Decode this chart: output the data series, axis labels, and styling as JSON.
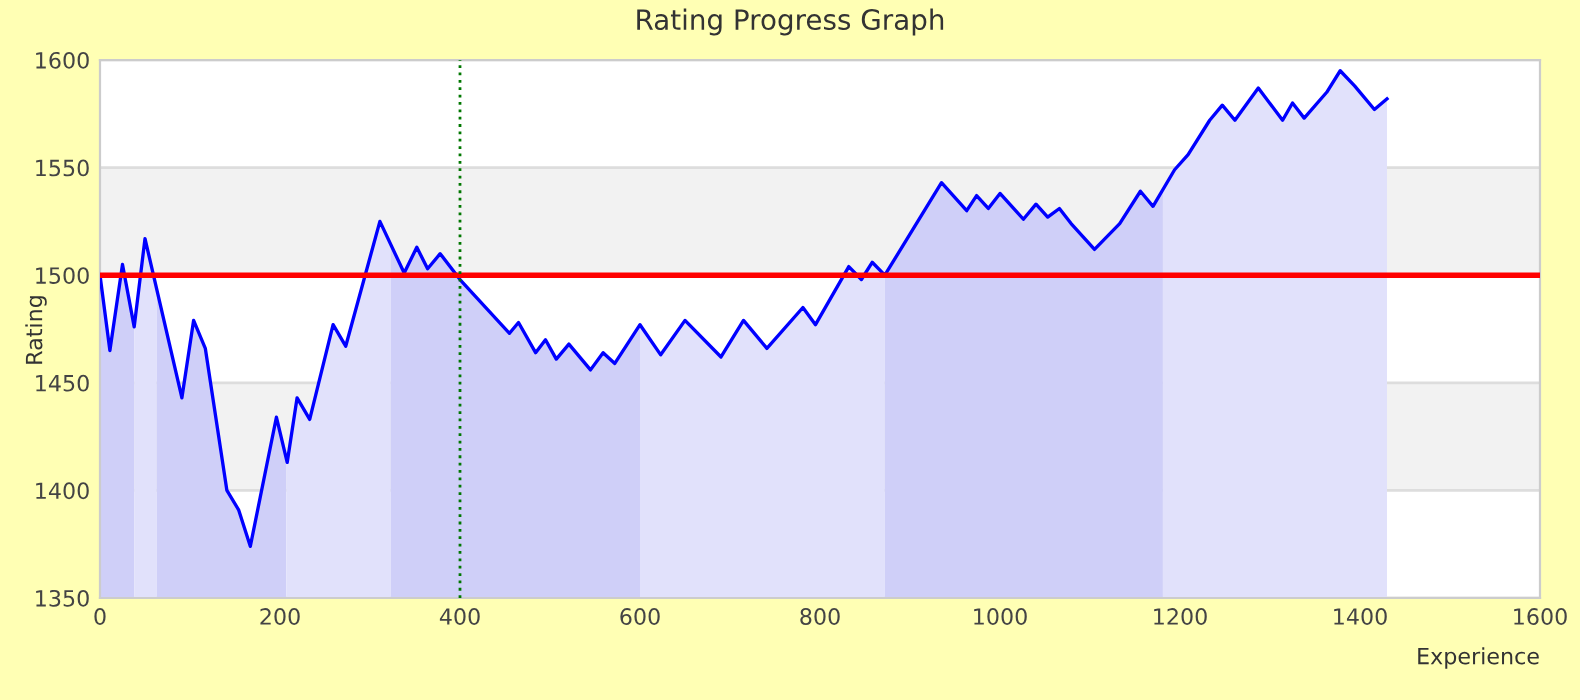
{
  "chart_data": {
    "type": "area",
    "title": "Rating Progress Graph",
    "xlabel": "Experience",
    "ylabel": "Rating",
    "xlim": [
      0,
      1600
    ],
    "xticks": [
      0,
      200,
      400,
      600,
      800,
      1000,
      1200,
      1400,
      1600
    ],
    "ylim": [
      1350,
      1600
    ],
    "yticks": [
      1350,
      1400,
      1450,
      1500,
      1550,
      1600
    ],
    "grid": "y",
    "marker": "none",
    "line_style": "solid",
    "series": [
      {
        "color": "#cfcff8",
        "x": [
          0,
          11,
          25,
          38
        ],
        "values": [
          1500,
          1465,
          1505,
          1476
        ]
      },
      {
        "color": "#e1e1fb",
        "x": [
          38,
          50,
          63
        ],
        "values": [
          1476,
          1517,
          1494
        ]
      },
      {
        "color": "#cfcff8",
        "x": [
          63,
          91,
          104,
          117,
          141,
          154,
          167,
          196,
          207
        ],
        "values": [
          1494,
          1443,
          1479,
          1466,
          1400,
          1391,
          1374,
          1434,
          1415
        ]
      },
      {
        "color": "#e1e1fb",
        "x": [
          207,
          208,
          219,
          233,
          259,
          273,
          311,
          323
        ],
        "values": [
          1415,
          1413,
          1443,
          1433,
          1477,
          1467,
          1525,
          1514
        ]
      },
      {
        "color": "#cfcff8",
        "x": [
          323,
          338,
          352,
          364,
          378,
          400,
          455,
          465,
          484,
          495,
          507,
          521,
          545,
          559,
          572,
          600
        ],
        "values": [
          1514,
          1501,
          1513,
          1503,
          1510,
          1498,
          1473,
          1478,
          1464,
          1470,
          1461,
          1468,
          1456,
          1464,
          1459,
          1477
        ]
      },
      {
        "color": "#e1e1fb",
        "x": [
          600,
          623,
          650,
          690,
          715,
          741,
          781,
          795,
          832,
          846,
          858,
          872
        ],
        "values": [
          1477,
          1463,
          1479,
          1462,
          1479,
          1466,
          1485,
          1477,
          1504,
          1498,
          1506,
          1500
        ]
      },
      {
        "color": "#cfcff8",
        "x": [
          872,
          935,
          963,
          974,
          987,
          1000,
          1026,
          1040,
          1053,
          1066,
          1079,
          1105,
          1133,
          1156,
          1170,
          1181
        ],
        "values": [
          1500,
          1543,
          1530,
          1537,
          1531,
          1538,
          1526,
          1533,
          1527,
          1531,
          1524,
          1512,
          1524,
          1539,
          1532,
          1540
        ]
      },
      {
        "color": "#e1e1fb",
        "x": [
          1181,
          1194,
          1209,
          1233,
          1247,
          1261,
          1287,
          1314,
          1325,
          1338,
          1363,
          1378,
          1394,
          1416,
          1430
        ],
        "values": [
          1540,
          1549,
          1556,
          1572,
          1579,
          1572,
          1587,
          1572,
          1580,
          1573,
          1585,
          1595,
          1588,
          1577,
          1582
        ]
      },
      {
        "type": "line",
        "color": "#0000ff",
        "x": [
          0,
          11,
          25,
          38,
          50,
          91,
          104,
          117,
          141,
          154,
          167,
          196,
          208,
          219,
          233,
          259,
          273,
          311,
          338,
          352,
          364,
          378,
          400,
          455,
          465,
          484,
          495,
          507,
          521,
          545,
          559,
          572,
          600,
          623,
          650,
          690,
          715,
          741,
          781,
          795,
          832,
          846,
          858,
          872,
          935,
          963,
          974,
          987,
          1000,
          1026,
          1040,
          1053,
          1066,
          1079,
          1105,
          1133,
          1156,
          1170,
          1194,
          1209,
          1233,
          1247,
          1261,
          1287,
          1314,
          1325,
          1338,
          1363,
          1378,
          1394,
          1416,
          1430
        ],
        "values": [
          1500,
          1465,
          1505,
          1476,
          1517,
          1443,
          1479,
          1466,
          1400,
          1391,
          1374,
          1434,
          1413,
          1443,
          1433,
          1477,
          1467,
          1525,
          1501,
          1513,
          1503,
          1510,
          1498,
          1473,
          1478,
          1464,
          1470,
          1461,
          1468,
          1456,
          1464,
          1459,
          1477,
          1463,
          1479,
          1462,
          1479,
          1466,
          1485,
          1477,
          1504,
          1498,
          1506,
          1500,
          1543,
          1530,
          1537,
          1531,
          1538,
          1526,
          1533,
          1527,
          1531,
          1524,
          1512,
          1524,
          1539,
          1532,
          1549,
          1556,
          1572,
          1579,
          1572,
          1587,
          1572,
          1580,
          1573,
          1585,
          1595,
          1588,
          1577,
          1582
        ]
      }
    ],
    "ref_lines": [
      {
        "axis": "y",
        "value": 1500,
        "color": "#ff0000",
        "line_style": "solid"
      },
      {
        "axis": "x",
        "value": 400,
        "color": "#007700",
        "line_style": "dotted"
      }
    ]
  }
}
